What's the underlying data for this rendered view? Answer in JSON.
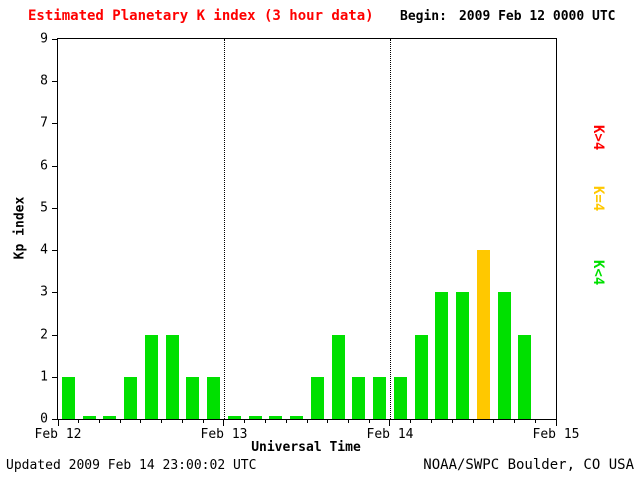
{
  "title": "Estimated Planetary K index (3 hour data)",
  "begin": {
    "label": "Begin:",
    "value": "2009 Feb 12 0000 UTC"
  },
  "footer": {
    "updated": "Updated 2009 Feb 14 23:00:02 UTC",
    "source": "NOAA/SWPC Boulder, CO USA"
  },
  "chart_data": {
    "type": "bar",
    "title": "Estimated Planetary K index (3 hour data)",
    "xlabel": "Universal Time",
    "ylabel": "Kp index",
    "ylim": [
      0,
      9
    ],
    "yticks": [
      0,
      1,
      2,
      3,
      4,
      5,
      6,
      7,
      8,
      9
    ],
    "x_day_labels": [
      "Feb 12",
      "Feb 13",
      "Feb 14",
      "Feb 15"
    ],
    "hours_per_bar": 3,
    "total_hours": 72,
    "grid": "dotted vertical lines at day boundaries",
    "legend_position": "right",
    "values": [
      1,
      0,
      0,
      1,
      2,
      2,
      1,
      1,
      0,
      0,
      0,
      0,
      1,
      2,
      1,
      1,
      1,
      2,
      3,
      3,
      4,
      3,
      2
    ],
    "colors": {
      "below4": "#00e000",
      "equal4": "#ffc800",
      "above4": "#ff0000",
      "title": "#ff0000",
      "axis": "#000000"
    },
    "legend": [
      {
        "label": "K>4",
        "colorKey": "above4"
      },
      {
        "label": "K=4",
        "colorKey": "equal4"
      },
      {
        "label": "K<4",
        "colorKey": "below4"
      }
    ]
  }
}
